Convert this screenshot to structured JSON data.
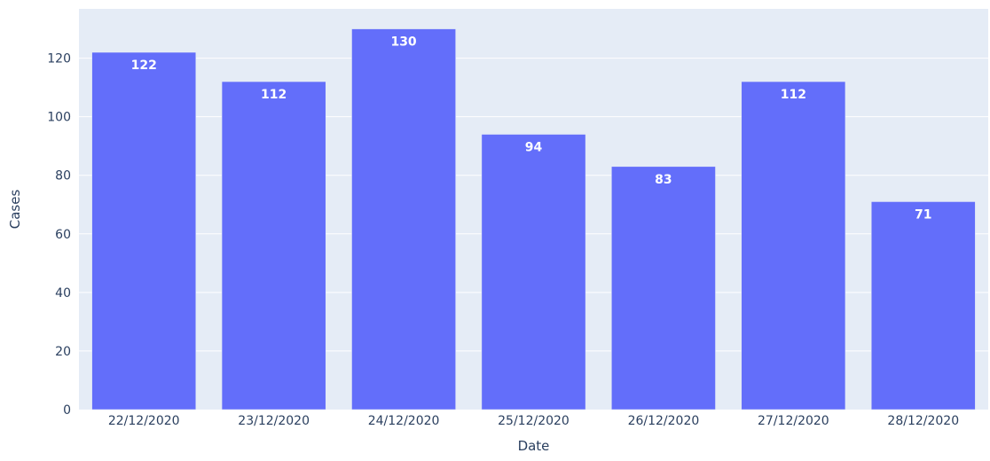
{
  "chart_data": {
    "type": "bar",
    "title": "",
    "xlabel": "Date",
    "ylabel": "Cases",
    "categories": [
      "22/12/2020",
      "23/12/2020",
      "24/12/2020",
      "25/12/2020",
      "26/12/2020",
      "27/12/2020",
      "28/12/2020"
    ],
    "values": [
      122,
      112,
      130,
      94,
      83,
      112,
      71
    ],
    "data_labels": [
      "122",
      "112",
      "130",
      "94",
      "83",
      "112",
      "71"
    ],
    "ylim": [
      0,
      136.84
    ],
    "yticks": [
      0,
      20,
      40,
      60,
      80,
      100,
      120
    ],
    "ytick_labels": [
      "0",
      "20",
      "40",
      "60",
      "80",
      "100",
      "120"
    ],
    "grid": true,
    "legend": "none",
    "colors": {
      "bar": "#636efa",
      "plot_background": "#e5ecf6",
      "grid": "#ffffff",
      "text": "#2a3f5f",
      "bar_label": "#ffffff"
    }
  }
}
